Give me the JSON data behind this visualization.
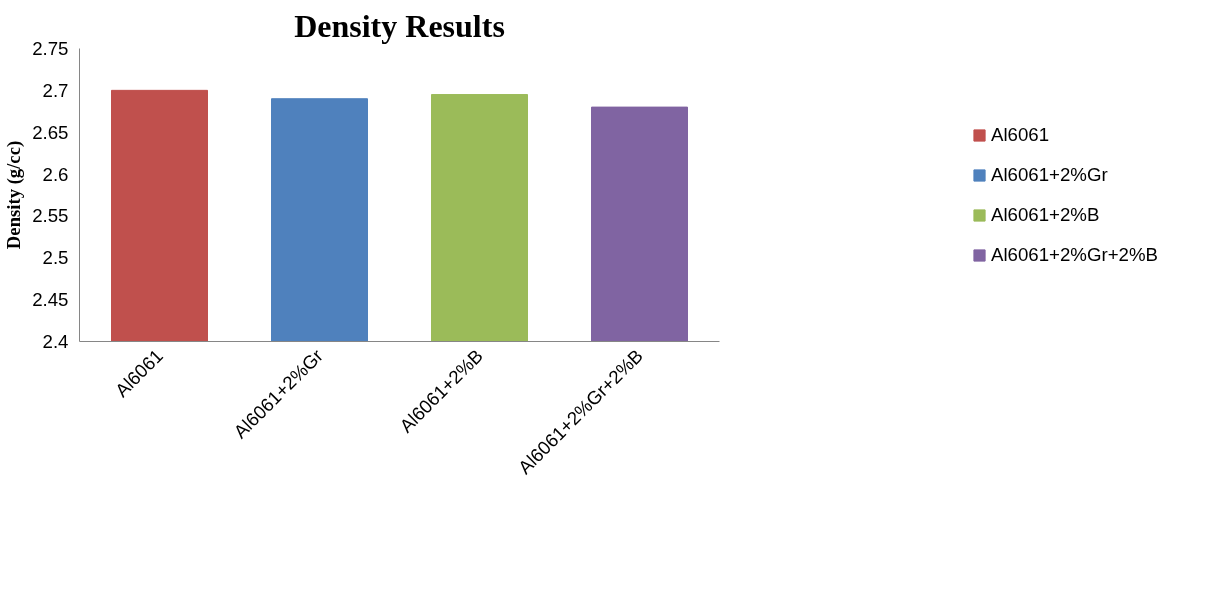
{
  "chart_data": {
    "type": "bar",
    "title": "Density Results",
    "ylabel": "Density (g/cc)",
    "categories": [
      "Al6061",
      "Al6061+2%Gr",
      "Al6061+2%B",
      "Al6061+2%Gr+2%B"
    ],
    "series": [
      {
        "name": "Al6061",
        "color": "#c0504d",
        "values": [
          2.7,
          null,
          null,
          null
        ]
      },
      {
        "name": "Al6061+2%Gr",
        "color": "#4f81bd",
        "values": [
          null,
          2.69,
          null,
          null
        ]
      },
      {
        "name": "Al6061+2%B",
        "color": "#9bbb59",
        "values": [
          null,
          null,
          2.695,
          null
        ]
      },
      {
        "name": "Al6061+2%Gr+2%B",
        "color": "#8064a2",
        "values": [
          null,
          null,
          null,
          2.68
        ]
      }
    ],
    "ylim": [
      2.4,
      2.75
    ],
    "yticks": [
      2.4,
      2.45,
      2.5,
      2.55,
      2.6,
      2.65,
      2.7,
      2.75
    ],
    "grid": false,
    "legend": "right"
  }
}
